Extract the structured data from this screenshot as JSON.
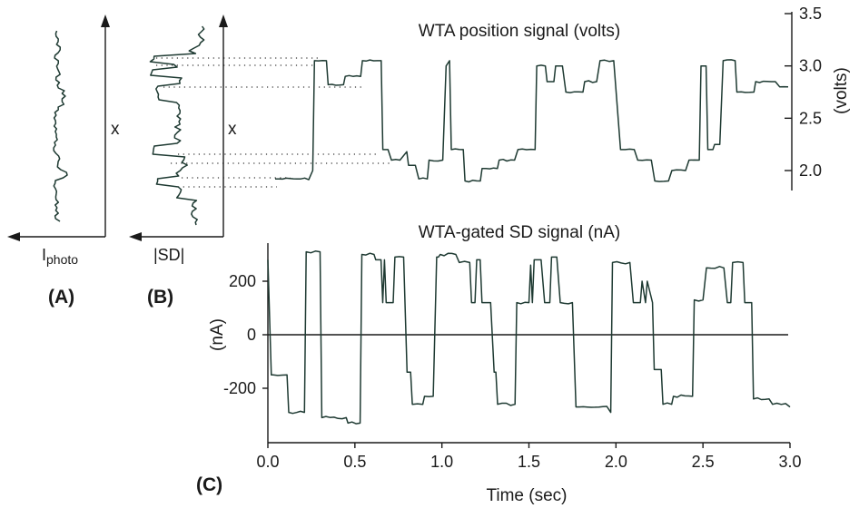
{
  "panels": {
    "a": {
      "label": "(A)",
      "axis_label": "x",
      "x_axis_label_main": "I",
      "x_axis_label_sub": "photo"
    },
    "b": {
      "label": "(B)",
      "axis_label": "x",
      "x_axis_label": "|SD|"
    },
    "c": {
      "label": "(C)"
    }
  },
  "chart_data": [
    {
      "type": "line",
      "title": "WTA position signal (volts)",
      "ylabel": "(volts)",
      "xlim": [
        0.0,
        3.0
      ],
      "ylim": [
        1.5,
        3.5
      ],
      "yticks": [
        2.0,
        2.5,
        3.0,
        3.5
      ],
      "ytick_labels": [
        "2.0",
        "2.5",
        "3.0",
        "3.5"
      ],
      "x": [
        0.0,
        0.15,
        0.22,
        0.23,
        0.3,
        0.31,
        0.4,
        0.41,
        0.5,
        0.51,
        0.62,
        0.63,
        0.66,
        0.68,
        0.73,
        0.77,
        0.78,
        0.82,
        0.84,
        0.89,
        0.9,
        0.98,
        1.0,
        1.02,
        1.03,
        1.1,
        1.11,
        1.2,
        1.21,
        1.3,
        1.31,
        1.4,
        1.42,
        1.52,
        1.53,
        1.58,
        1.59,
        1.63,
        1.64,
        1.68,
        1.7,
        1.8,
        1.81,
        1.88,
        1.9,
        1.98,
        2.02,
        2.1,
        2.12,
        2.2,
        2.22,
        2.3,
        2.32,
        2.4,
        2.42,
        2.48,
        2.49,
        2.52,
        2.53,
        2.56,
        2.57,
        2.6,
        2.62,
        2.69,
        2.7,
        2.8,
        2.81,
        2.9,
        2.95,
        3.0
      ],
      "y": [
        1.92,
        1.92,
        2.0,
        3.05,
        3.05,
        2.82,
        2.82,
        2.9,
        2.9,
        3.05,
        3.05,
        2.2,
        2.2,
        2.1,
        2.1,
        2.18,
        2.05,
        2.05,
        1.92,
        1.92,
        2.1,
        2.1,
        3.0,
        3.05,
        2.2,
        2.2,
        1.9,
        1.9,
        2.02,
        2.02,
        2.1,
        2.1,
        2.2,
        2.2,
        3.0,
        3.0,
        2.85,
        2.85,
        3.0,
        3.0,
        2.75,
        2.75,
        2.85,
        2.85,
        3.05,
        3.05,
        2.2,
        2.2,
        2.1,
        2.1,
        1.9,
        1.9,
        2.0,
        2.0,
        2.1,
        2.1,
        3.0,
        3.0,
        2.2,
        2.2,
        2.25,
        2.25,
        3.05,
        3.05,
        2.75,
        2.75,
        2.85,
        2.85,
        2.8,
        2.8
      ]
    },
    {
      "type": "line",
      "title": "WTA-gated SD signal (nA)",
      "xlabel": "Time (sec)",
      "ylabel": "(nA)",
      "xlim": [
        0.0,
        3.0
      ],
      "ylim": [
        -400,
        340
      ],
      "xticks": [
        0.0,
        0.5,
        1.0,
        1.5,
        2.0,
        2.5,
        3.0
      ],
      "xtick_labels": [
        "0.0",
        "0.5",
        "1.0",
        "1.5",
        "2.0",
        "2.5",
        "3.0"
      ],
      "yticks": [
        -200,
        0,
        200
      ],
      "ytick_labels": [
        "-200",
        "0",
        "200"
      ],
      "zero_line": true,
      "x": [
        0.0,
        0.02,
        0.03,
        0.11,
        0.12,
        0.21,
        0.22,
        0.3,
        0.31,
        0.45,
        0.46,
        0.53,
        0.54,
        0.61,
        0.62,
        0.65,
        0.66,
        0.67,
        0.68,
        0.72,
        0.73,
        0.78,
        0.8,
        0.82,
        0.83,
        0.89,
        0.9,
        0.95,
        0.97,
        0.98,
        0.99,
        1.08,
        1.1,
        1.16,
        1.17,
        1.19,
        1.2,
        1.22,
        1.23,
        1.28,
        1.3,
        1.31,
        1.32,
        1.42,
        1.43,
        1.5,
        1.51,
        1.52,
        1.53,
        1.57,
        1.59,
        1.62,
        1.63,
        1.66,
        1.68,
        1.75,
        1.77,
        1.78,
        1.79,
        1.97,
        1.98,
        2.08,
        2.1,
        2.14,
        2.15,
        2.17,
        2.18,
        2.21,
        2.22,
        2.26,
        2.27,
        2.32,
        2.33,
        2.44,
        2.45,
        2.5,
        2.52,
        2.62,
        2.64,
        2.66,
        2.67,
        2.73,
        2.74,
        2.78,
        2.79,
        2.88,
        2.9,
        3.0
      ],
      "y": [
        280,
        -150,
        -150,
        -150,
        -290,
        -290,
        310,
        310,
        -310,
        -310,
        -330,
        -330,
        300,
        300,
        280,
        280,
        120,
        280,
        120,
        120,
        290,
        290,
        -140,
        -140,
        -260,
        -260,
        -230,
        -230,
        290,
        290,
        300,
        300,
        270,
        270,
        120,
        120,
        280,
        280,
        120,
        120,
        -140,
        -140,
        -260,
        -260,
        120,
        120,
        260,
        120,
        280,
        280,
        120,
        120,
        290,
        290,
        120,
        120,
        -270,
        -270,
        -270,
        -290,
        270,
        270,
        120,
        120,
        200,
        120,
        200,
        120,
        -130,
        -130,
        -260,
        -260,
        -230,
        -230,
        130,
        130,
        250,
        250,
        120,
        120,
        270,
        270,
        120,
        120,
        -240,
        -240,
        -260,
        -270
      ]
    }
  ]
}
